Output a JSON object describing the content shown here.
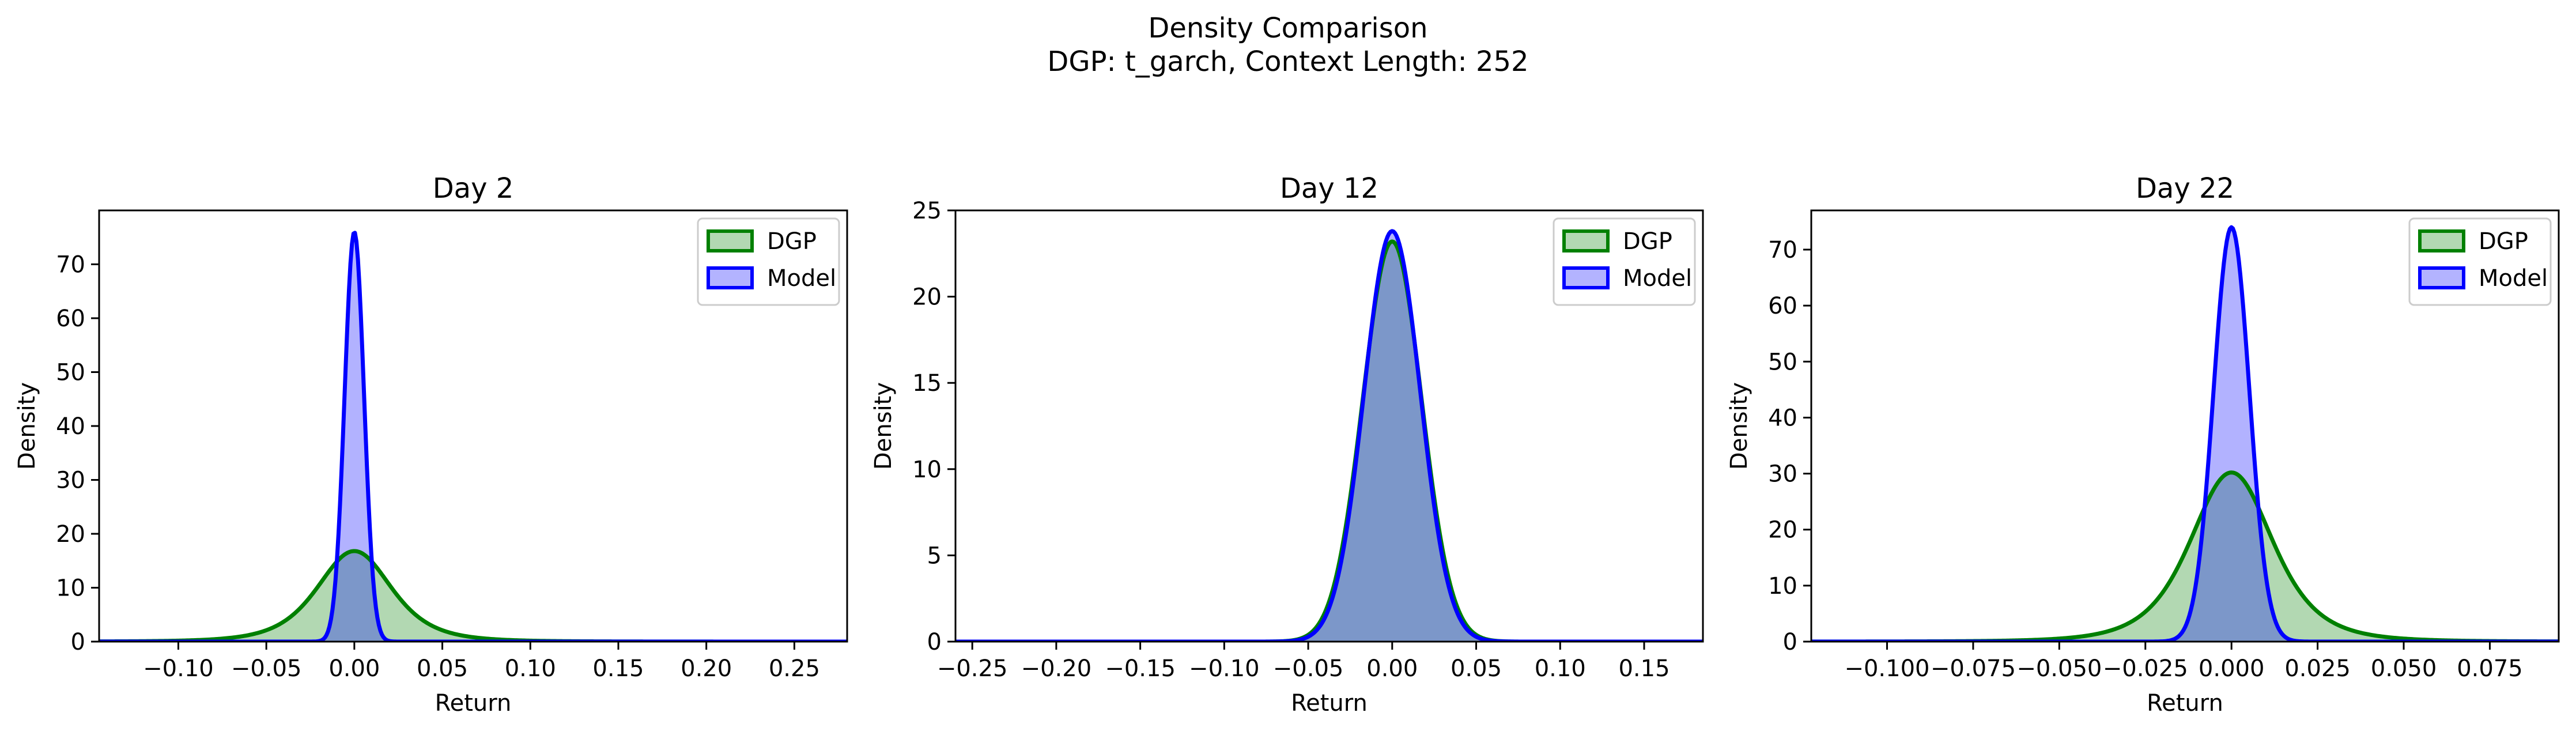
{
  "figure": {
    "title_line1": "Density Comparison",
    "title_line2": "DGP: t_garch, Context Length: 252"
  },
  "colors": {
    "dgp_line": "#008000",
    "dgp_fill": "#b2d8b2",
    "model_line": "#0000ff",
    "model_fill": "#b3b3ff",
    "overlap_fill": "#7f99cc"
  },
  "chart_data": [
    {
      "type": "area",
      "title": "Day 2",
      "xlabel": "Return",
      "ylabel": "Density",
      "xlim": [
        -0.145,
        0.28
      ],
      "ylim": [
        0,
        80
      ],
      "xticks": [
        -0.1,
        -0.05,
        0.0,
        0.05,
        0.1,
        0.15,
        0.2,
        0.25
      ],
      "xtick_labels": [
        "−0.10",
        "−0.05",
        "0.00",
        "0.05",
        "0.10",
        "0.15",
        "0.20",
        "0.25"
      ],
      "yticks": [
        0,
        10,
        20,
        30,
        40,
        50,
        60,
        70
      ],
      "ytick_labels": [
        "0",
        "10",
        "20",
        "30",
        "40",
        "50",
        "60",
        "70"
      ],
      "legend": {
        "position": "upper right",
        "entries": [
          "DGP",
          "Model"
        ]
      },
      "series": [
        {
          "name": "DGP",
          "kind": "t",
          "peak": 16.8,
          "center": 0.0,
          "scale": 0.022,
          "df": 4
        },
        {
          "name": "Model",
          "kind": "normal",
          "peak": 76.0,
          "center": 0.0,
          "sigma": 0.0055
        }
      ]
    },
    {
      "type": "area",
      "title": "Day 12",
      "xlabel": "Return",
      "ylabel": "Density",
      "xlim": [
        -0.26,
        0.185
      ],
      "ylim": [
        0,
        25
      ],
      "xticks": [
        -0.25,
        -0.2,
        -0.15,
        -0.1,
        -0.05,
        0.0,
        0.05,
        0.1,
        0.15
      ],
      "xtick_labels": [
        "−0.25",
        "−0.20",
        "−0.15",
        "−0.10",
        "−0.05",
        "0.00",
        "0.05",
        "0.10",
        "0.15"
      ],
      "yticks": [
        0,
        5,
        10,
        15,
        20,
        25
      ],
      "ytick_labels": [
        "0",
        "5",
        "10",
        "15",
        "20",
        "25"
      ],
      "legend": {
        "position": "upper right",
        "entries": [
          "DGP",
          "Model"
        ]
      },
      "series": [
        {
          "name": "DGP",
          "kind": "normal",
          "peak": 23.2,
          "center": 0.0,
          "sigma": 0.0175
        },
        {
          "name": "Model",
          "kind": "normal",
          "peak": 23.8,
          "center": 0.0,
          "sigma": 0.0168
        }
      ]
    },
    {
      "type": "area",
      "title": "Day 22",
      "xlabel": "Return",
      "ylabel": "Density",
      "xlim": [
        -0.122,
        0.095
      ],
      "ylim": [
        0,
        77
      ],
      "xticks": [
        -0.1,
        -0.075,
        -0.05,
        -0.025,
        0.0,
        0.025,
        0.05,
        0.075
      ],
      "xtick_labels": [
        "−0.100",
        "−0.075",
        "−0.050",
        "−0.025",
        "0.000",
        "0.025",
        "0.050",
        "0.075"
      ],
      "yticks": [
        0,
        10,
        20,
        30,
        40,
        50,
        60,
        70
      ],
      "ytick_labels": [
        "0",
        "10",
        "20",
        "30",
        "40",
        "50",
        "60",
        "70"
      ],
      "legend": {
        "position": "upper right",
        "entries": [
          "DGP",
          "Model"
        ]
      },
      "series": [
        {
          "name": "DGP",
          "kind": "t",
          "peak": 30.2,
          "center": 0.0,
          "scale": 0.0125,
          "df": 4
        },
        {
          "name": "Model",
          "kind": "normal",
          "peak": 74.0,
          "center": 0.0,
          "sigma": 0.0052
        }
      ]
    }
  ]
}
